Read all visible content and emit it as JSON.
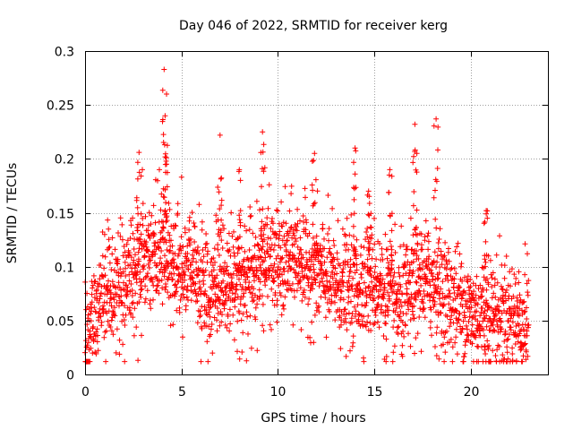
{
  "chart_data": {
    "type": "scatter",
    "title": "Day 046 of 2022, SRMTID for receiver kerg",
    "xlabel": "GPS time / hours",
    "ylabel": "SRMTID / TECUs",
    "xlim": [
      0,
      24
    ],
    "ylim": [
      0,
      0.3
    ],
    "xticks": [
      0,
      5,
      10,
      15,
      20
    ],
    "xtick_labels": [
      "0",
      "5",
      "10",
      "15",
      "20"
    ],
    "yticks": [
      0,
      0.05,
      0.1,
      0.15,
      0.2,
      0.25,
      0.3
    ],
    "ytick_labels": [
      "0",
      "0.05",
      "0.1",
      "0.15",
      "0.2",
      "0.25",
      "0.3"
    ],
    "grid": true,
    "marker": "+",
    "series": [
      {
        "name": "SRMTID",
        "color": "#ff0000",
        "x_range": [
          0,
          23
        ],
        "n_points": 2400,
        "trend": {
          "x": [
            0,
            0.5,
            1,
            1.5,
            2,
            2.5,
            3,
            3.5,
            4,
            4.5,
            5,
            5.5,
            6,
            6.5,
            7,
            7.5,
            8,
            8.5,
            9,
            9.5,
            10,
            10.5,
            11,
            11.5,
            12,
            12.5,
            13,
            13.5,
            14,
            14.5,
            15,
            15.5,
            16,
            16.5,
            17,
            17.5,
            18,
            18.5,
            19,
            19.5,
            20,
            20.5,
            21,
            21.5,
            22,
            22.5,
            23
          ],
          "y": [
            0.04,
            0.055,
            0.07,
            0.08,
            0.085,
            0.095,
            0.1,
            0.105,
            0.11,
            0.105,
            0.1,
            0.1,
            0.085,
            0.075,
            0.085,
            0.09,
            0.085,
            0.09,
            0.1,
            0.105,
            0.1,
            0.105,
            0.11,
            0.1,
            0.095,
            0.09,
            0.085,
            0.08,
            0.08,
            0.085,
            0.09,
            0.075,
            0.065,
            0.065,
            0.08,
            0.09,
            0.085,
            0.075,
            0.07,
            0.065,
            0.055,
            0.055,
            0.055,
            0.055,
            0.055,
            0.05,
            0.05
          ]
        },
        "peaks": [
          {
            "x": 4.1,
            "y": 0.283
          },
          {
            "x": 4.15,
            "y": 0.24
          },
          {
            "x": 2.8,
            "y": 0.206
          },
          {
            "x": 7.0,
            "y": 0.222
          },
          {
            "x": 8.0,
            "y": 0.19
          },
          {
            "x": 9.2,
            "y": 0.225
          },
          {
            "x": 11.9,
            "y": 0.205
          },
          {
            "x": 14.0,
            "y": 0.21
          },
          {
            "x": 14.7,
            "y": 0.17
          },
          {
            "x": 15.8,
            "y": 0.19
          },
          {
            "x": 17.1,
            "y": 0.232
          },
          {
            "x": 18.2,
            "y": 0.237
          },
          {
            "x": 20.8,
            "y": 0.152
          }
        ]
      }
    ]
  }
}
